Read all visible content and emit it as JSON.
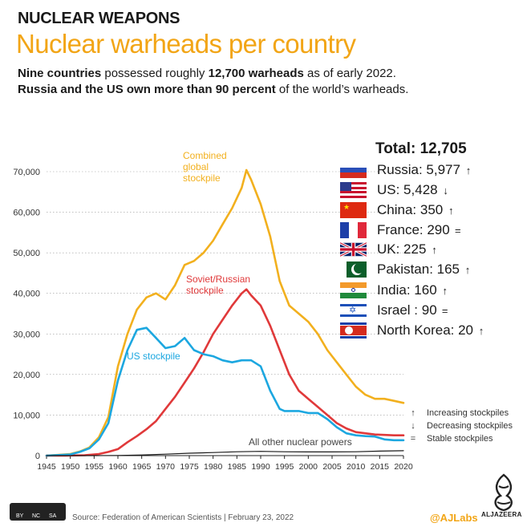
{
  "header": {
    "kicker": "NUCLEAR WEAPONS",
    "title": "Nuclear warheads per country",
    "sub1_a": "Nine countries",
    "sub1_b": " possessed roughly ",
    "sub1_c": "12,700 warheads",
    "sub1_d": " as of early 2022.",
    "sub2_a": "Russia and the US own more than 90 percent",
    "sub2_b": " of the world’s warheads."
  },
  "legend": {
    "total": "Total: 12,705",
    "countries": [
      {
        "label": "Russia: 5,977",
        "trend": "↑",
        "flag": "russia-flag-icon"
      },
      {
        "label": "US: 5,428",
        "trend": "↓",
        "flag": "us-flag-icon"
      },
      {
        "label": "China: 350",
        "trend": "↑",
        "flag": "china-flag-icon"
      },
      {
        "label": "France: 290",
        "trend": "=",
        "flag": "france-flag-icon"
      },
      {
        "label": "UK: 225",
        "trend": "↑",
        "flag": "uk-flag-icon"
      },
      {
        "label": "Pakistan: 165",
        "trend": "↑",
        "flag": "pakistan-flag-icon"
      },
      {
        "label": "India: 160",
        "trend": "↑",
        "flag": "india-flag-icon"
      },
      {
        "label": "Israel  : 90",
        "trend": "=",
        "flag": "israel-flag-icon"
      },
      {
        "label": "North Korea: 20",
        "trend": "↑",
        "flag": "north-korea-flag-icon"
      }
    ],
    "key": [
      {
        "symbol": "↑",
        "label": "Increasing stockpiles"
      },
      {
        "symbol": "↓",
        "label": "Decreasing stockpiles"
      },
      {
        "symbol": "=",
        "label": "Stable stockpiles"
      }
    ]
  },
  "footer": {
    "source": "Source: Federation of American Scientists | February 23, 2022",
    "handle": "@AJLabs",
    "logo_text": "ALJAZEERA",
    "cc_labels": [
      "BY",
      "NC",
      "SA"
    ]
  },
  "colors": {
    "combined": "#f2b01e",
    "russia": "#e0393a",
    "us": "#1ca7e0",
    "other": "#1a1a1a",
    "grid": "#9a9a9a",
    "accent": "#f2a516"
  },
  "chart_data": {
    "type": "line",
    "ylim": [
      0,
      70000
    ],
    "yticks": [
      0,
      10000,
      20000,
      30000,
      40000,
      50000,
      60000,
      70000
    ],
    "ytick_labels": [
      "0",
      "10,000",
      "20,000",
      "30,000",
      "40,000",
      "50,000",
      "60,000",
      "70,000"
    ],
    "xlim": [
      1945,
      2021
    ],
    "xticks": [
      1945,
      1950,
      1955,
      1960,
      1965,
      1970,
      1975,
      1980,
      1985,
      1990,
      1995,
      2000,
      2005,
      2010,
      2015,
      2020
    ],
    "xtick_labels": [
      "1945",
      "1950",
      "1955",
      "1960",
      "1965",
      "1970",
      "1975",
      "1980",
      "1985",
      "1990",
      "1995",
      "2000",
      "2005",
      "2010",
      "2015",
      "2020"
    ],
    "series": [
      {
        "name": "Combined global stockpile",
        "key": "combined",
        "label_lines": [
          "Combined",
          "global",
          "stockpile"
        ],
        "x": [
          1945,
          1950,
          1952,
          1954,
          1956,
          1958,
          1960,
          1962,
          1964,
          1966,
          1968,
          1970,
          1972,
          1974,
          1976,
          1978,
          1980,
          1982,
          1984,
          1986,
          1987,
          1988,
          1990,
          1992,
          1994,
          1996,
          1998,
          2000,
          2002,
          2004,
          2006,
          2008,
          2010,
          2012,
          2014,
          2016,
          2018,
          2020
        ],
        "y": [
          2,
          400,
          1000,
          2000,
          4500,
          9500,
          22000,
          30000,
          36000,
          39000,
          40000,
          38500,
          42000,
          47000,
          48000,
          50000,
          53000,
          57000,
          61000,
          66000,
          70400,
          68000,
          62000,
          54000,
          43000,
          37000,
          35000,
          33000,
          30000,
          26000,
          23000,
          20000,
          17000,
          15000,
          14000,
          14000,
          13500,
          13000
        ]
      },
      {
        "name": "Soviet/Russian stockpile",
        "key": "russia",
        "label_lines": [
          "Soviet/Russian",
          "stockpile"
        ],
        "x": [
          1945,
          1949,
          1953,
          1956,
          1958,
          1960,
          1962,
          1964,
          1966,
          1968,
          1970,
          1972,
          1974,
          1976,
          1978,
          1980,
          1982,
          1984,
          1986,
          1987,
          1988,
          1990,
          1992,
          1994,
          1996,
          1998,
          2000,
          2002,
          2004,
          2006,
          2008,
          2010,
          2012,
          2014,
          2016,
          2018,
          2020
        ],
        "y": [
          0,
          0,
          100,
          400,
          900,
          1600,
          3300,
          4800,
          6500,
          8500,
          11500,
          14500,
          18000,
          21500,
          25500,
          30000,
          33500,
          37000,
          40000,
          41000,
          39500,
          37000,
          32000,
          26000,
          20000,
          16000,
          14000,
          12000,
          10000,
          8000,
          6700,
          5800,
          5500,
          5200,
          5100,
          5000,
          5000
        ]
      },
      {
        "name": "US stockpile",
        "key": "us",
        "label_lines": [
          "US stockpile"
        ],
        "x": [
          1945,
          1950,
          1952,
          1954,
          1956,
          1958,
          1960,
          1962,
          1964,
          1966,
          1968,
          1970,
          1972,
          1974,
          1976,
          1978,
          1980,
          1982,
          1984,
          1986,
          1988,
          1990,
          1992,
          1994,
          1995,
          1996,
          1998,
          2000,
          2002,
          2004,
          2006,
          2008,
          2010,
          2012,
          2014,
          2016,
          2018,
          2020
        ],
        "y": [
          2,
          300,
          900,
          1800,
          4000,
          8000,
          18500,
          26000,
          31000,
          31500,
          29000,
          26500,
          27000,
          29000,
          26000,
          25000,
          24500,
          23500,
          23000,
          23500,
          23500,
          22000,
          16000,
          11500,
          11000,
          11000,
          11000,
          10500,
          10500,
          9000,
          7000,
          5500,
          5000,
          4800,
          4700,
          4000,
          3800,
          3800
        ]
      },
      {
        "name": "All other nuclear powers",
        "key": "other",
        "label_lines": [
          "All other nuclear powers"
        ],
        "x": [
          1945,
          1955,
          1960,
          1965,
          1970,
          1975,
          1980,
          1985,
          1990,
          1995,
          2000,
          2005,
          2010,
          2015,
          2020
        ],
        "y": [
          0,
          0,
          30,
          150,
          350,
          600,
          750,
          950,
          1050,
          950,
          900,
          900,
          950,
          1100,
          1200
        ]
      }
    ]
  }
}
